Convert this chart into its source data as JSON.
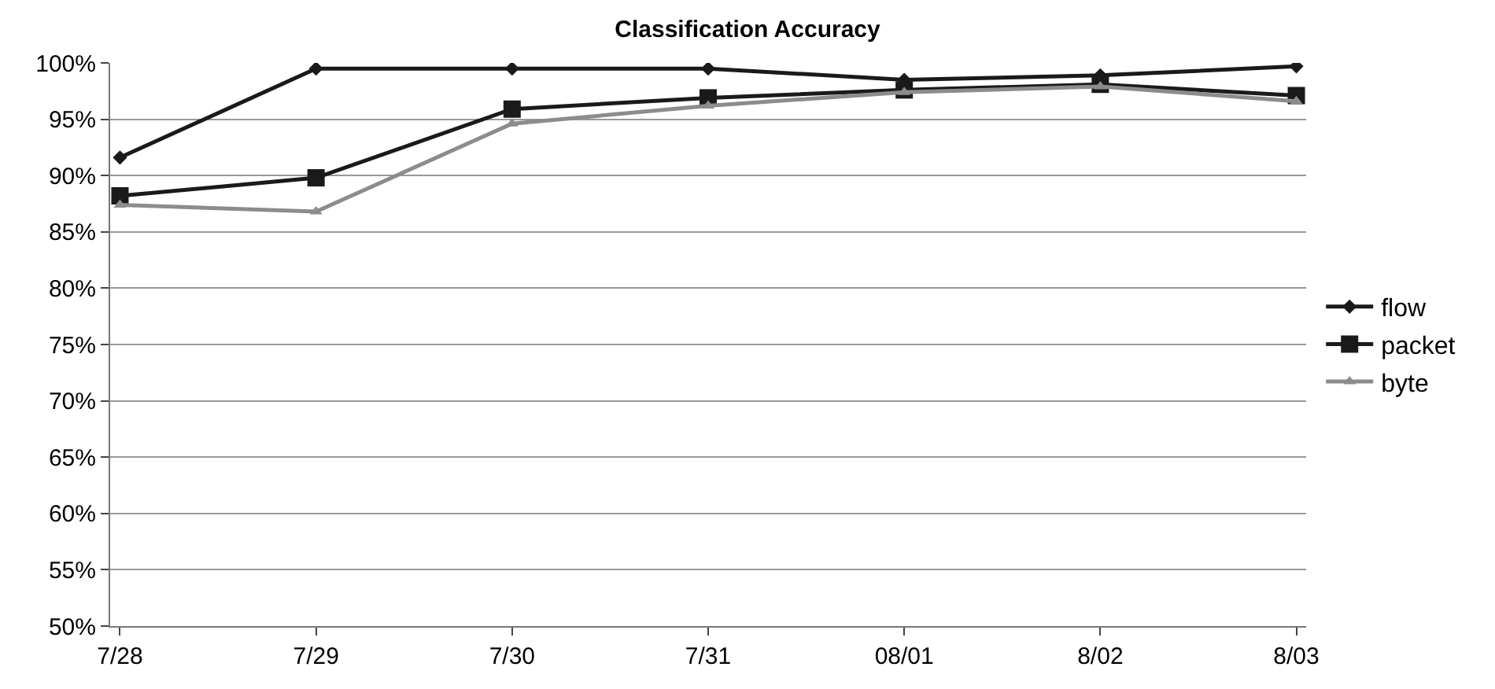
{
  "chart_data": {
    "type": "line",
    "title": "Classification Accuracy",
    "categories": [
      "7/28",
      "7/29",
      "7/30",
      "7/31",
      "08/01",
      "8/02",
      "8/03"
    ],
    "series": [
      {
        "name": "flow",
        "color": "#1a1a1a",
        "marker": "diamond",
        "values": [
          91.6,
          99.5,
          99.5,
          99.5,
          98.5,
          98.9,
          99.7
        ]
      },
      {
        "name": "packet",
        "color": "#1a1a1a",
        "marker": "square",
        "values": [
          88.2,
          89.8,
          95.9,
          96.9,
          97.6,
          98.1,
          97.1
        ]
      },
      {
        "name": "byte",
        "color": "#8c8c8c",
        "marker": "triangle",
        "values": [
          87.4,
          86.8,
          94.6,
          96.2,
          97.4,
          97.9,
          96.6
        ]
      }
    ],
    "ylim": [
      50,
      100
    ],
    "yticks": [
      {
        "value": 50,
        "label": "50%"
      },
      {
        "value": 55,
        "label": "55%"
      },
      {
        "value": 60,
        "label": "60%"
      },
      {
        "value": 65,
        "label": "65%"
      },
      {
        "value": 70,
        "label": "70%"
      },
      {
        "value": 75,
        "label": "75%"
      },
      {
        "value": 80,
        "label": "80%"
      },
      {
        "value": 85,
        "label": "85%"
      },
      {
        "value": 90,
        "label": "90%"
      },
      {
        "value": 95,
        "label": "95%"
      },
      {
        "value": 100,
        "label": "100%"
      }
    ],
    "grid": "y",
    "legend": "right",
    "line_style": "solid"
  }
}
